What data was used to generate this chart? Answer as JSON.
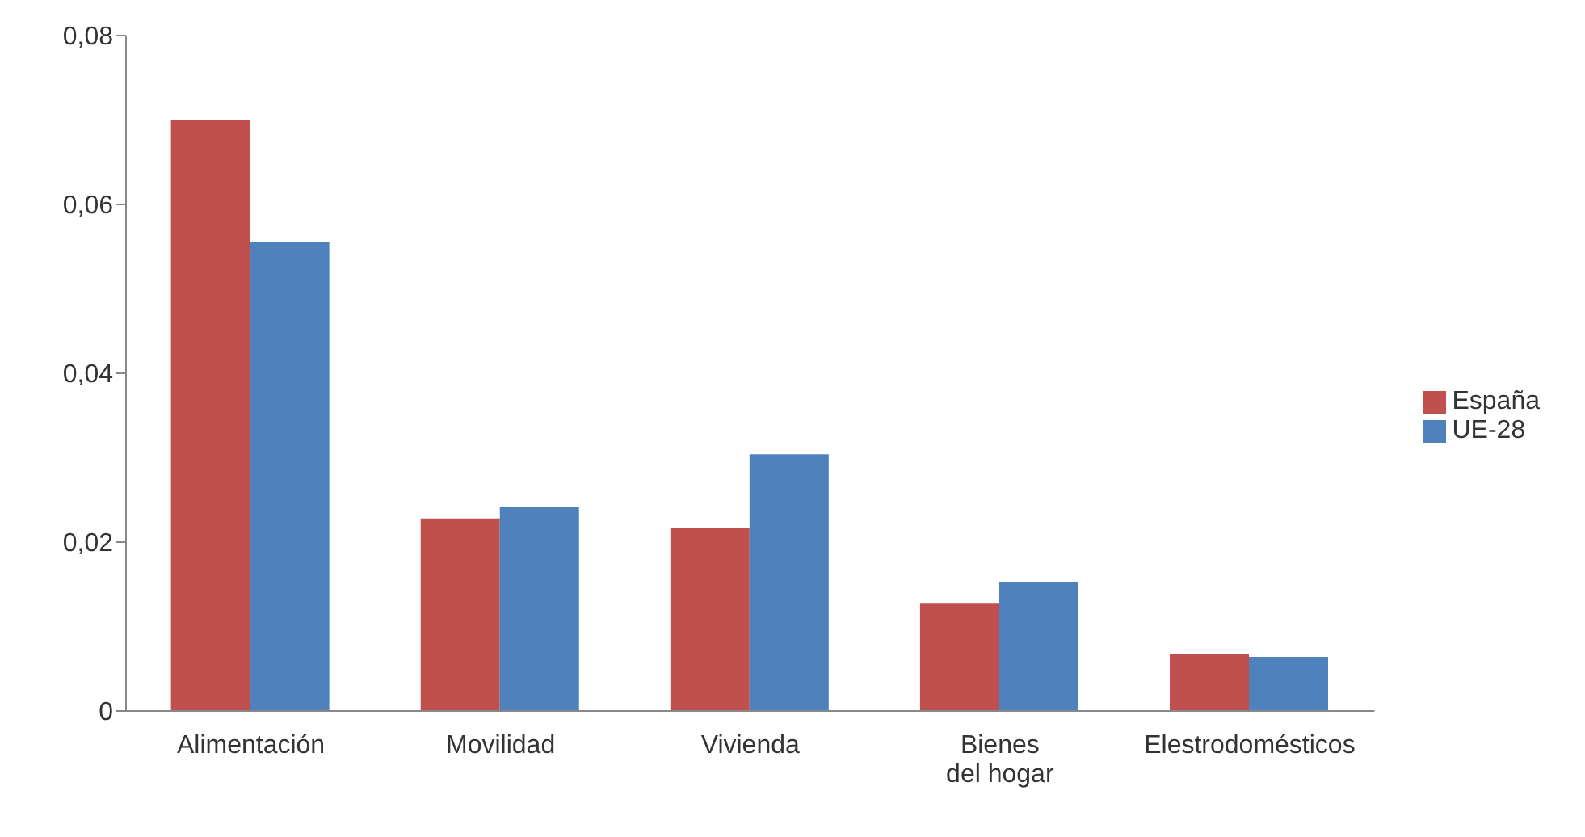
{
  "chart_data": {
    "type": "bar",
    "categories": [
      "Alimentación",
      "Movilidad",
      "Vivienda",
      "Bienes del hogar",
      "Elestrodomésticos"
    ],
    "series": [
      {
        "name": "España",
        "color": "#c0504d",
        "values": [
          0.07,
          0.0228,
          0.0217,
          0.0128,
          0.0068
        ]
      },
      {
        "name": "UE-28",
        "color": "#4f81bd",
        "values": [
          0.0555,
          0.0242,
          0.0304,
          0.0153,
          0.0064
        ]
      }
    ],
    "ylim": [
      0,
      0.08
    ],
    "yticks": [
      0,
      {
        "value": 0.02,
        "label": "0,02"
      },
      {
        "value": 0.04,
        "label": "0,04"
      },
      {
        "value": 0.06,
        "label": "0,06"
      },
      {
        "value": 0.08,
        "label": "0,08"
      }
    ],
    "grid": false,
    "legend": "right"
  }
}
